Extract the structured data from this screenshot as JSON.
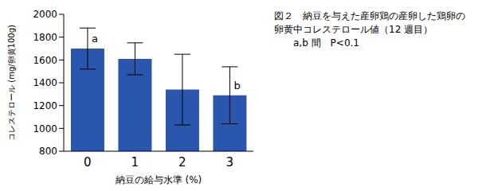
{
  "chart_data": {
    "type": "bar",
    "title": "図２　納豆を与えた産卵鶏の産卵した鶏卵の卵黄中コレステロール値（12 週目）",
    "subtitle": "a,b 間　P<0.1",
    "x_label": "納豆の給与水準 (%)",
    "y_label": "コレステロール (mg/卵黄100g)",
    "categories": [
      "0",
      "1",
      "2",
      "3"
    ],
    "values": [
      1700,
      1610,
      1340,
      1290
    ],
    "errors": [
      180,
      140,
      310,
      250
    ],
    "annotations": [
      {
        "category": "0",
        "text": "a"
      },
      {
        "category": "3",
        "text": "b"
      }
    ],
    "color": "#2a57ad",
    "ylim": [
      800,
      2000
    ],
    "yticks": [
      800,
      1000,
      1200,
      1400,
      1600,
      1800,
      2000
    ],
    "grid": false
  }
}
